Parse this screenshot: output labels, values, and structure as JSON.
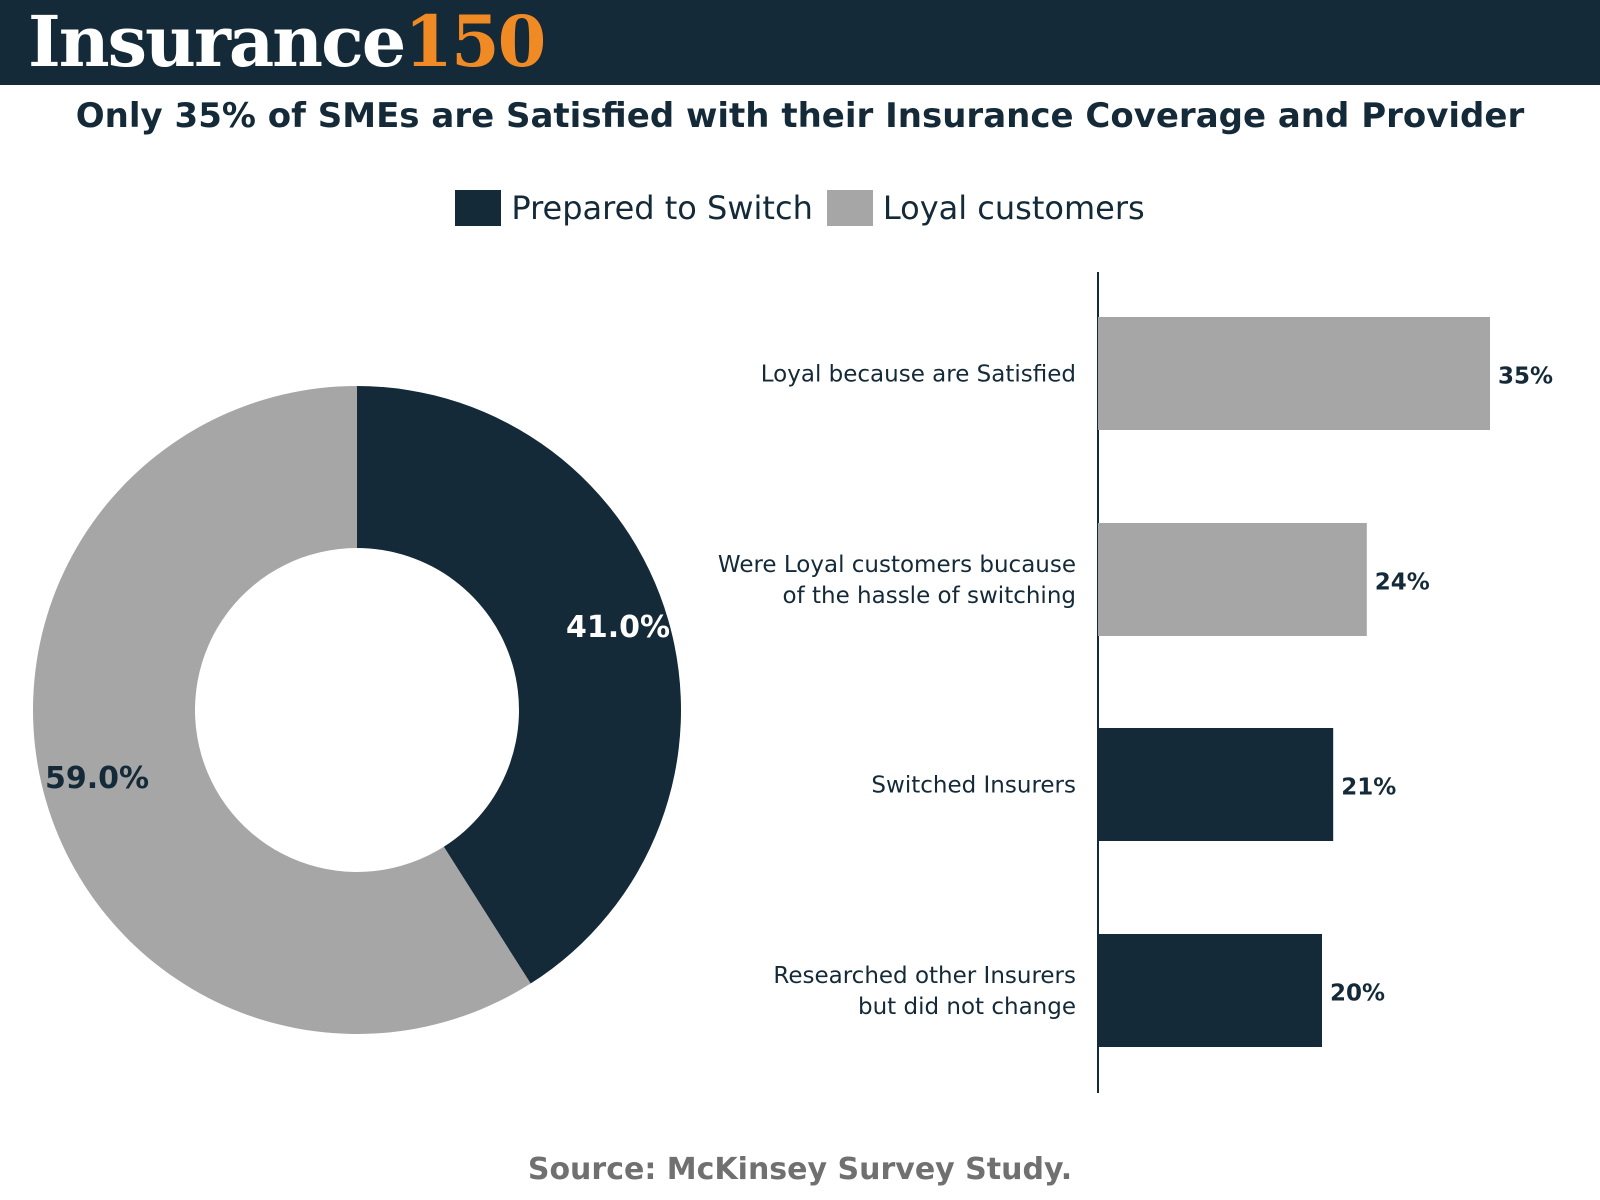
{
  "brand": {
    "word": "Insurance",
    "number": "150"
  },
  "colors": {
    "navy": "#142a38",
    "gray": "#a6a6a6",
    "orange": "#f08a24",
    "source": "#707070"
  },
  "chart_data": [
    {
      "type": "pie",
      "subtype": "donut",
      "title": "Only 35% of SMEs are Satisfied with their Insurance Coverage and Provider",
      "legend": [
        {
          "label": "Prepared to Switch",
          "color": "#142a38"
        },
        {
          "label": "Loyal customers",
          "color": "#a6a6a6"
        }
      ],
      "slices": [
        {
          "label": "Prepared to Switch",
          "value": 41.0,
          "display": "41.0%",
          "color": "#142a38"
        },
        {
          "label": "Loyal customers",
          "value": 59.0,
          "display": "59.0%",
          "color": "#a6a6a6"
        }
      ]
    },
    {
      "type": "bar",
      "orientation": "horizontal",
      "categories": [
        [
          "Loyal because are Satisfied"
        ],
        [
          "Were Loyal customers bucause",
          "of the hassle of switching"
        ],
        [
          "Switched Insurers"
        ],
        [
          "Researched other Insurers",
          "but did not change"
        ]
      ],
      "values": [
        35,
        24,
        21,
        20
      ],
      "value_labels": [
        "35%",
        "24%",
        "21%",
        "20%"
      ],
      "groups": [
        "Loyal customers",
        "Loyal customers",
        "Prepared to Switch",
        "Prepared to Switch"
      ],
      "xlim": [
        0,
        40
      ]
    }
  ],
  "source": "Source: McKinsey Survey Study."
}
